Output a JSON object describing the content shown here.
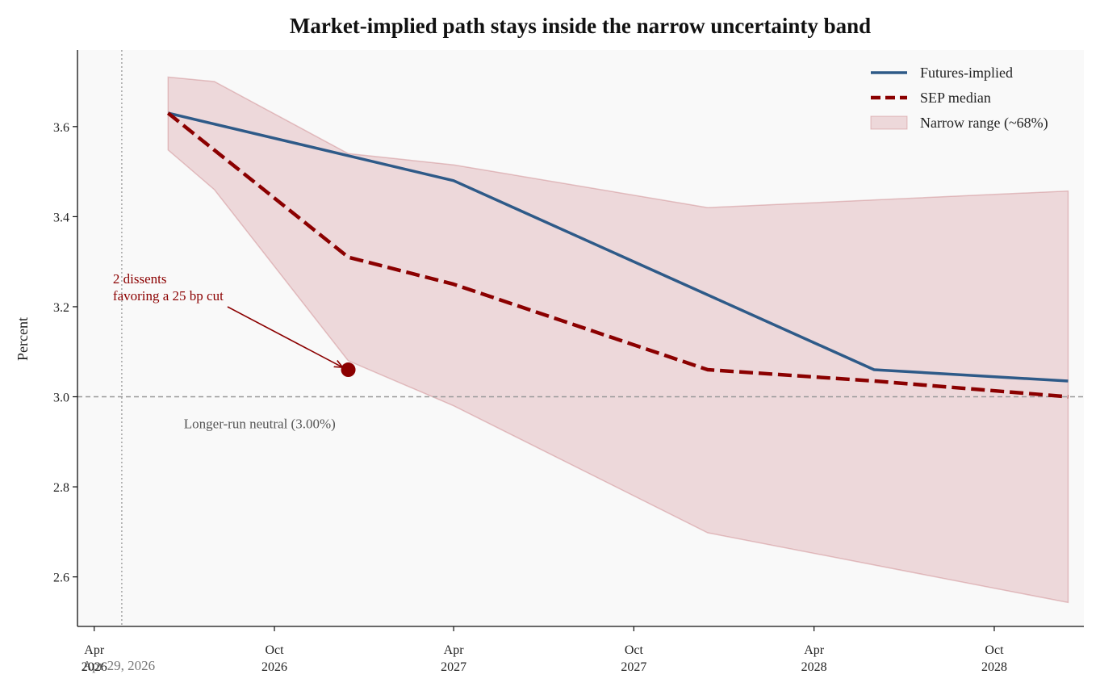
{
  "chart_data": {
    "type": "line",
    "title": "Market-implied path stays inside the narrow uncertainty band",
    "ylabel": "Percent",
    "xlabel": "",
    "ylim": [
      2.49,
      3.77
    ],
    "xlim": [
      "2026-03-15",
      "2028-12-31"
    ],
    "yticks": [
      2.6,
      2.8,
      3.0,
      3.2,
      3.4,
      3.6
    ],
    "xticks": [
      {
        "date": "2026-04-01",
        "label": "Apr\n2026"
      },
      {
        "date": "2026-10-01",
        "label": "Oct\n2026"
      },
      {
        "date": "2027-04-01",
        "label": "Apr\n2027"
      },
      {
        "date": "2027-10-01",
        "label": "Oct\n2027"
      },
      {
        "date": "2028-04-01",
        "label": "Apr\n2028"
      },
      {
        "date": "2028-10-01",
        "label": "Oct\n2028"
      }
    ],
    "grid": false,
    "legend_position": "top-right",
    "series": [
      {
        "name": "Futures-implied",
        "color": "#2e5a88",
        "style": "solid",
        "x": [
          "2026-06-15",
          "2027-04-01",
          "2028-06-01",
          "2028-12-15"
        ],
        "values": [
          3.63,
          3.48,
          3.06,
          3.035
        ]
      },
      {
        "name": "SEP median",
        "color": "#8b0000",
        "style": "dashed",
        "x": [
          "2026-06-15",
          "2026-12-15",
          "2027-04-01",
          "2027-12-15",
          "2028-06-01",
          "2028-12-15"
        ],
        "values": [
          3.63,
          3.31,
          3.25,
          3.06,
          3.035,
          3.0
        ]
      }
    ],
    "band": {
      "name": "Narrow range (~68%)",
      "color": "#b5444c",
      "x": [
        "2026-06-15",
        "2026-08-01",
        "2026-12-15",
        "2027-04-01",
        "2027-12-15",
        "2028-12-15"
      ],
      "upper": [
        3.71,
        3.7,
        3.54,
        3.515,
        3.42,
        3.457
      ],
      "lower": [
        3.548,
        3.46,
        3.08,
        2.98,
        2.698,
        2.543
      ]
    },
    "hline": {
      "y": 3.0,
      "label": "Longer-run neutral (3.00%)",
      "color": "#999999"
    },
    "vline": {
      "date": "2026-04-29",
      "label": "Apr 29, 2026",
      "color": "#999999"
    },
    "annotation": {
      "text": [
        "2 dissents",
        "favoring a 25 bp cut"
      ],
      "point_date": "2026-12-15",
      "point_value": 3.06,
      "text_date": "2026-04-20",
      "text_value": 3.225,
      "color": "#8b0000"
    }
  }
}
